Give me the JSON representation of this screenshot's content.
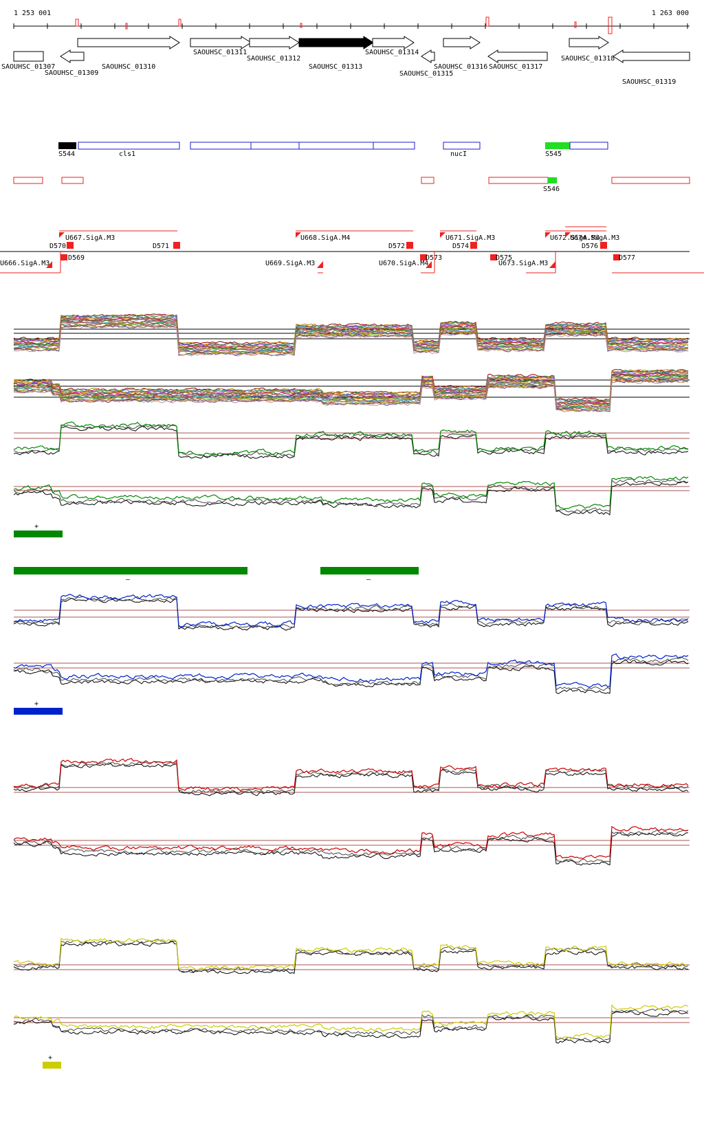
{
  "coordinates": {
    "start": "1 253 001",
    "end": "1 263 000"
  },
  "genes": [
    {
      "label": "SAOUHSC_01307",
      "dir": "right",
      "filled": false
    },
    {
      "label": "SAOUHSC_01309",
      "dir": "left",
      "filled": false
    },
    {
      "label": "SAOUHSC_01310",
      "dir": "right",
      "filled": false
    },
    {
      "label": "SAOUHSC_01311",
      "dir": "right",
      "filled": false
    },
    {
      "label": "SAOUHSC_01312",
      "dir": "right",
      "filled": false
    },
    {
      "label": "SAOUHSC_01313",
      "dir": "right",
      "filled": true
    },
    {
      "label": "SAOUHSC_01314",
      "dir": "right",
      "filled": false
    },
    {
      "label": "SAOUHSC_01315",
      "dir": "left",
      "filled": false
    },
    {
      "label": "SAOUHSC_01316",
      "dir": "right",
      "filled": false
    },
    {
      "label": "SAOUHSC_01317",
      "dir": "left",
      "filled": false
    },
    {
      "label": "SAOUHSC_01318",
      "dir": "right",
      "filled": false
    },
    {
      "label": "SAOUHSC_01319",
      "dir": "left",
      "filled": false
    }
  ],
  "segments_plus": [
    {
      "label": "S544",
      "color": "#000000"
    },
    {
      "label": "cls1",
      "color": "#1a1acc"
    },
    {
      "label": "nucI",
      "color": "#1a1acc"
    },
    {
      "label": "S545",
      "color": "#22dd22"
    }
  ],
  "segments_minus": [
    {
      "label": "S546",
      "color": "#22dd22"
    }
  ],
  "promoters_top": [
    {
      "label": "U667.SigA.M3"
    },
    {
      "label": "U668.SigA.M4"
    },
    {
      "label": "U671.SigA.M3"
    },
    {
      "label": "U672.SigA.M4"
    },
    {
      "label": "U674.SigA.M3"
    }
  ],
  "terminators_top": [
    {
      "label": "D570"
    },
    {
      "label": "D571"
    },
    {
      "label": "D572"
    },
    {
      "label": "D574"
    },
    {
      "label": "D576"
    }
  ],
  "promoters_bottom": [
    {
      "label": "U666.SigA.M3"
    },
    {
      "label": "U669.SigA.M3"
    },
    {
      "label": "U670.SigA.M4"
    },
    {
      "label": "U673.SigA.M3"
    }
  ],
  "terminators_bottom": [
    {
      "label": "D569"
    },
    {
      "label": "D573"
    },
    {
      "label": "D575"
    },
    {
      "label": "D577"
    }
  ],
  "track_colors": {
    "green": "#008800",
    "blue": "#0022cc",
    "red": "#cc0000",
    "yellow": "#cccc00",
    "black": "#000000",
    "feature_red": "#ee2222"
  },
  "strand_labels": {
    "plus": "+",
    "minus": "–"
  }
}
